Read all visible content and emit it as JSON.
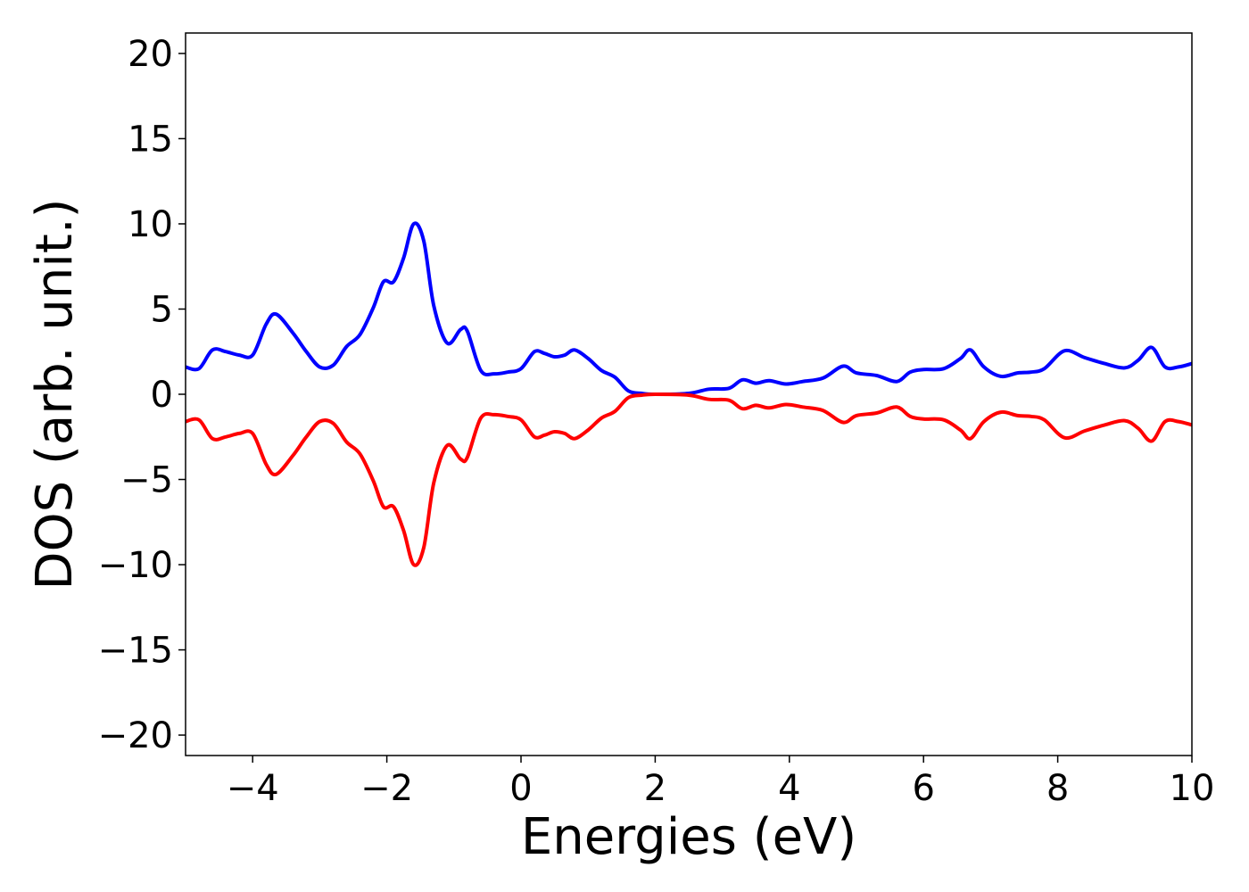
{
  "chart_data": {
    "type": "line",
    "title": "",
    "xlabel": "Energies (eV)",
    "ylabel": "DOS (arb. unit.)",
    "xlim": [
      -5,
      10
    ],
    "ylim": [
      -21.2,
      21.2
    ],
    "xticks": [
      -4,
      -2,
      0,
      2,
      4,
      6,
      8,
      10
    ],
    "yticks": [
      -20,
      -15,
      -10,
      -5,
      0,
      5,
      10,
      15,
      20
    ],
    "xtick_labels": [
      "−4",
      "−2",
      "0",
      "2",
      "4",
      "6",
      "8",
      "10"
    ],
    "ytick_labels": [
      "−20",
      "−15",
      "−10",
      "−5",
      "0",
      "5",
      "10",
      "15",
      "20"
    ],
    "grid": false,
    "series": [
      {
        "color": "#0000ff",
        "points": [
          [
            -5.0,
            1.6
          ],
          [
            -4.8,
            1.5
          ],
          [
            -4.6,
            2.6
          ],
          [
            -4.4,
            2.5
          ],
          [
            -4.2,
            2.3
          ],
          [
            -4.0,
            2.3
          ],
          [
            -3.8,
            4.1
          ],
          [
            -3.65,
            4.7
          ],
          [
            -3.4,
            3.6
          ],
          [
            -3.2,
            2.5
          ],
          [
            -3.0,
            1.6
          ],
          [
            -2.8,
            1.7
          ],
          [
            -2.6,
            2.8
          ],
          [
            -2.4,
            3.5
          ],
          [
            -2.2,
            5.1
          ],
          [
            -2.05,
            6.6
          ],
          [
            -1.9,
            6.6
          ],
          [
            -1.75,
            8.0
          ],
          [
            -1.6,
            10.0
          ],
          [
            -1.45,
            9.0
          ],
          [
            -1.3,
            5.2
          ],
          [
            -1.1,
            3.0
          ],
          [
            -0.9,
            3.8
          ],
          [
            -0.8,
            3.7
          ],
          [
            -0.6,
            1.4
          ],
          [
            -0.4,
            1.2
          ],
          [
            -0.2,
            1.3
          ],
          [
            0.0,
            1.5
          ],
          [
            0.2,
            2.5
          ],
          [
            0.35,
            2.4
          ],
          [
            0.5,
            2.2
          ],
          [
            0.65,
            2.3
          ],
          [
            0.8,
            2.6
          ],
          [
            1.0,
            2.1
          ],
          [
            1.2,
            1.4
          ],
          [
            1.4,
            1.0
          ],
          [
            1.6,
            0.2
          ],
          [
            1.8,
            0.05
          ],
          [
            2.0,
            0.0
          ],
          [
            2.5,
            0.05
          ],
          [
            2.8,
            0.3
          ],
          [
            3.1,
            0.35
          ],
          [
            3.3,
            0.85
          ],
          [
            3.5,
            0.65
          ],
          [
            3.7,
            0.8
          ],
          [
            3.95,
            0.6
          ],
          [
            4.2,
            0.75
          ],
          [
            4.5,
            0.95
          ],
          [
            4.8,
            1.65
          ],
          [
            5.0,
            1.25
          ],
          [
            5.3,
            1.1
          ],
          [
            5.6,
            0.75
          ],
          [
            5.8,
            1.3
          ],
          [
            6.0,
            1.45
          ],
          [
            6.3,
            1.5
          ],
          [
            6.55,
            2.1
          ],
          [
            6.7,
            2.6
          ],
          [
            6.9,
            1.6
          ],
          [
            7.15,
            1.05
          ],
          [
            7.4,
            1.25
          ],
          [
            7.6,
            1.3
          ],
          [
            7.8,
            1.5
          ],
          [
            8.1,
            2.55
          ],
          [
            8.4,
            2.15
          ],
          [
            8.7,
            1.8
          ],
          [
            9.0,
            1.55
          ],
          [
            9.2,
            2.0
          ],
          [
            9.4,
            2.75
          ],
          [
            9.6,
            1.6
          ],
          [
            9.8,
            1.6
          ],
          [
            10.0,
            1.8
          ]
        ]
      },
      {
        "color": "#ff0000",
        "points": [
          [
            -5.0,
            -1.6
          ],
          [
            -4.8,
            -1.5
          ],
          [
            -4.6,
            -2.6
          ],
          [
            -4.4,
            -2.5
          ],
          [
            -4.2,
            -2.3
          ],
          [
            -4.0,
            -2.3
          ],
          [
            -3.8,
            -4.1
          ],
          [
            -3.65,
            -4.7
          ],
          [
            -3.4,
            -3.6
          ],
          [
            -3.2,
            -2.5
          ],
          [
            -3.0,
            -1.6
          ],
          [
            -2.8,
            -1.7
          ],
          [
            -2.6,
            -2.8
          ],
          [
            -2.4,
            -3.5
          ],
          [
            -2.2,
            -5.1
          ],
          [
            -2.05,
            -6.6
          ],
          [
            -1.9,
            -6.6
          ],
          [
            -1.75,
            -8.0
          ],
          [
            -1.6,
            -10.0
          ],
          [
            -1.45,
            -9.0
          ],
          [
            -1.3,
            -5.2
          ],
          [
            -1.1,
            -3.0
          ],
          [
            -0.9,
            -3.8
          ],
          [
            -0.8,
            -3.7
          ],
          [
            -0.6,
            -1.4
          ],
          [
            -0.4,
            -1.2
          ],
          [
            -0.2,
            -1.3
          ],
          [
            0.0,
            -1.5
          ],
          [
            0.2,
            -2.5
          ],
          [
            0.35,
            -2.4
          ],
          [
            0.5,
            -2.2
          ],
          [
            0.65,
            -2.3
          ],
          [
            0.8,
            -2.6
          ],
          [
            1.0,
            -2.1
          ],
          [
            1.2,
            -1.4
          ],
          [
            1.4,
            -1.0
          ],
          [
            1.6,
            -0.2
          ],
          [
            1.8,
            -0.05
          ],
          [
            2.0,
            0.0
          ],
          [
            2.5,
            -0.05
          ],
          [
            2.8,
            -0.3
          ],
          [
            3.1,
            -0.35
          ],
          [
            3.3,
            -0.85
          ],
          [
            3.5,
            -0.65
          ],
          [
            3.7,
            -0.8
          ],
          [
            3.95,
            -0.6
          ],
          [
            4.2,
            -0.75
          ],
          [
            4.5,
            -0.95
          ],
          [
            4.8,
            -1.65
          ],
          [
            5.0,
            -1.25
          ],
          [
            5.3,
            -1.1
          ],
          [
            5.6,
            -0.75
          ],
          [
            5.8,
            -1.3
          ],
          [
            6.0,
            -1.45
          ],
          [
            6.3,
            -1.5
          ],
          [
            6.55,
            -2.1
          ],
          [
            6.7,
            -2.6
          ],
          [
            6.9,
            -1.6
          ],
          [
            7.15,
            -1.05
          ],
          [
            7.4,
            -1.25
          ],
          [
            7.6,
            -1.3
          ],
          [
            7.8,
            -1.5
          ],
          [
            8.1,
            -2.55
          ],
          [
            8.4,
            -2.15
          ],
          [
            8.7,
            -1.8
          ],
          [
            9.0,
            -1.55
          ],
          [
            9.2,
            -2.0
          ],
          [
            9.4,
            -2.75
          ],
          [
            9.6,
            -1.6
          ],
          [
            9.8,
            -1.6
          ],
          [
            10.0,
            -1.8
          ]
        ]
      }
    ]
  }
}
